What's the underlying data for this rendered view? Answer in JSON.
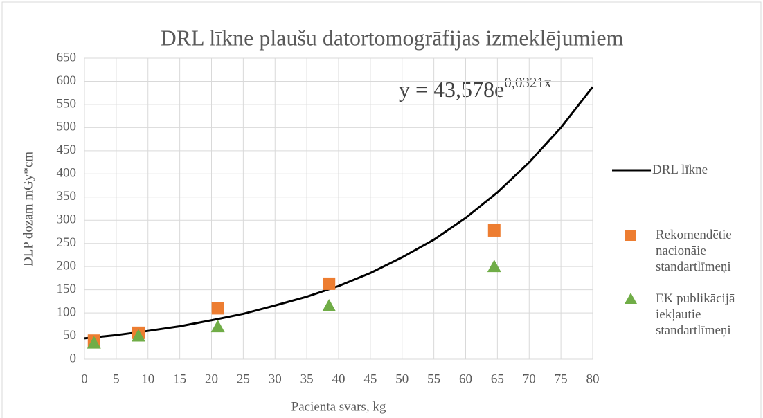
{
  "chart_data": {
    "type": "scatter",
    "title": "DRL līkne plaušu datortomogrāfijas izmeklējumiem",
    "xlabel": "Pacienta svars, kg",
    "ylabel": "DLP dozam mGy*cm",
    "annotation": {
      "text": "y = 43,578e",
      "superscript": "0,0321x"
    },
    "xlim": [
      0,
      80
    ],
    "ylim": [
      0,
      650
    ],
    "xticks": [
      0,
      5,
      10,
      15,
      20,
      25,
      30,
      35,
      40,
      45,
      50,
      55,
      60,
      65,
      70,
      75,
      80
    ],
    "yticks": [
      0,
      50,
      100,
      150,
      200,
      250,
      300,
      350,
      400,
      450,
      500,
      550,
      600,
      650
    ],
    "grid": true,
    "legend": "right",
    "series": [
      {
        "name": "DRL līkne",
        "color": "#000000",
        "kind": "line",
        "x": [
          0,
          5,
          10,
          15,
          20,
          25,
          30,
          35,
          40,
          45,
          50,
          55,
          60,
          65,
          70,
          75,
          80
        ],
        "values": [
          45,
          52,
          61,
          71,
          84,
          98,
          116,
          135,
          158,
          186,
          220,
          258,
          305,
          360,
          425,
          500,
          588
        ]
      },
      {
        "name": "Rekomendētie nacionāie standartlīmeņi",
        "color": "#ed7d31",
        "kind": "square",
        "x": [
          1.5,
          8.5,
          21,
          38.5,
          64.5
        ],
        "values": [
          40,
          57,
          110,
          163,
          278
        ]
      },
      {
        "name": "EK publikācijā iekļautie standartlīmeņi",
        "color": "#70ad47",
        "kind": "triangle",
        "x": [
          1.5,
          8.5,
          21,
          38.5,
          64.5
        ],
        "values": [
          35,
          50,
          70,
          115,
          200
        ]
      }
    ]
  }
}
